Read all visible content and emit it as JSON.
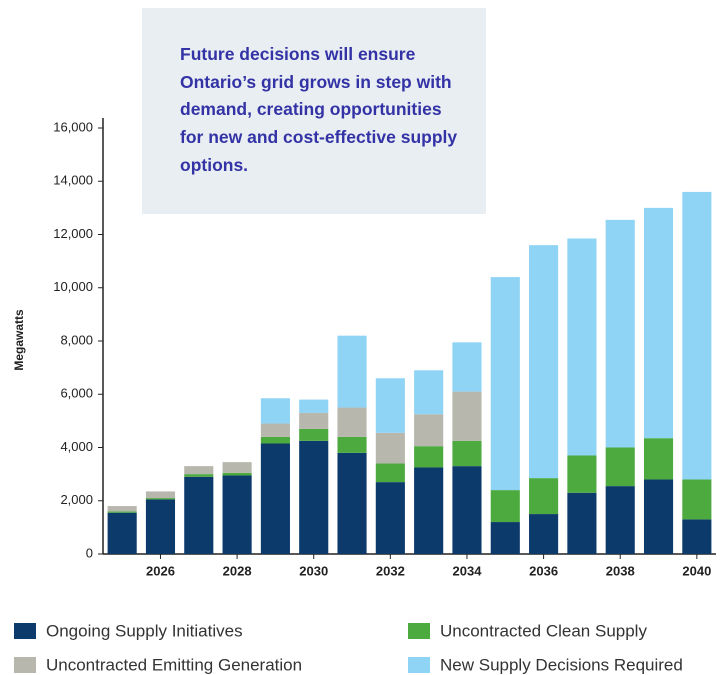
{
  "chart_data": {
    "type": "stacked-bar",
    "annotation": "Future decisions will ensure Ontario’s grid grows in step with demand, creating opportunities for new and cost-effective supply options.",
    "y_label": "Megawatts",
    "categories": [
      null,
      "2026",
      null,
      "2028",
      null,
      "2030",
      null,
      "2032",
      null,
      "2034",
      null,
      "2036",
      null,
      "2038",
      null,
      "2040"
    ],
    "series": [
      {
        "name": "Ongoing Supply Initiatives",
        "color": "#0b3a6b",
        "values": [
          1550,
          2050,
          2900,
          2950,
          4150,
          4250,
          3800,
          2700,
          3250,
          3300,
          1200,
          1500,
          2300,
          2550,
          2800,
          1300
        ]
      },
      {
        "name": "Uncontracted Clean Supply",
        "color": "#4daa3f",
        "values": [
          50,
          50,
          100,
          100,
          250,
          450,
          600,
          700,
          800,
          950,
          1200,
          1350,
          1400,
          1450,
          1550,
          1500
        ]
      },
      {
        "name": "Uncontracted Emitting Generation",
        "color": "#b7b7ae",
        "values": [
          200,
          250,
          300,
          400,
          500,
          600,
          1100,
          1150,
          1200,
          1850,
          0,
          0,
          0,
          0,
          0,
          0
        ]
      },
      {
        "name": "New Supply Decisions Required",
        "color": "#8fd3f5",
        "values": [
          0,
          0,
          0,
          0,
          950,
          500,
          2700,
          2050,
          1650,
          1850,
          8000,
          8750,
          8150,
          8550,
          8650,
          10800
        ]
      }
    ],
    "ylim": [
      0,
      16000
    ],
    "yticks": [
      0,
      {
        "value": 2000,
        "label": "2,000"
      },
      {
        "value": 4000,
        "label": "4,000"
      },
      {
        "value": 6000,
        "label": "6,000"
      },
      {
        "value": 8000,
        "label": "8,000"
      },
      {
        "value": 10000,
        "label": "10,000"
      },
      {
        "value": 12000,
        "label": "12,000"
      },
      {
        "value": 14000,
        "label": "14,000"
      },
      {
        "value": 16000,
        "label": "16,000"
      }
    ],
    "grid": false
  }
}
